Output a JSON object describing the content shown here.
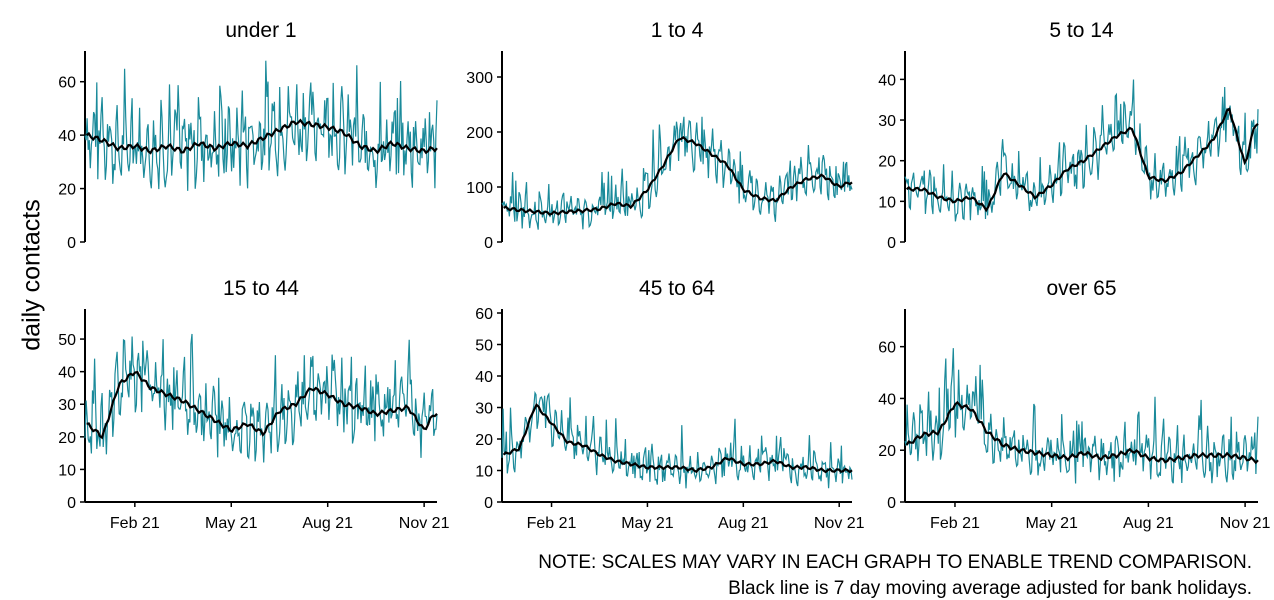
{
  "ylabel": "daily contacts",
  "notes": [
    "NOTE: SCALES MAY VARY IN EACH GRAPH TO ENABLE TREND COMPARISON.",
    "Black line is 7 day moving average adjusted for bank holidays."
  ],
  "colors": {
    "daily": "#1a8a9a",
    "average": "#000000"
  },
  "chart_data": {
    "type": "line",
    "x_tick_labels": [
      "Feb 21",
      "May 21",
      "Aug 21",
      "Nov 21"
    ],
    "x_ticks_month_index": [
      1,
      4,
      7,
      10
    ],
    "x_range_month_index": [
      -0.55,
      10.4
    ],
    "panels": [
      {
        "title": "under 1",
        "ylim": [
          0,
          70
        ],
        "yticks": [
          0,
          20,
          40,
          60
        ],
        "avg_months": [
          -0.5,
          0,
          0.5,
          1,
          1.5,
          2,
          2.5,
          3,
          3.5,
          4,
          4.5,
          5,
          5.5,
          6,
          6.5,
          7,
          7.5,
          8,
          8.5,
          9,
          9.5,
          10,
          10.3
        ],
        "avg_values": [
          40,
          38,
          35,
          36,
          34,
          36,
          34,
          37,
          35,
          37,
          36,
          39,
          42,
          45,
          44,
          43,
          41,
          36,
          34,
          37,
          35,
          34,
          35
        ],
        "daily_amplitude": 11
      },
      {
        "title": "1 to 4",
        "ylim": [
          0,
          340
        ],
        "yticks": [
          0,
          100,
          200,
          300
        ],
        "avg_months": [
          -0.5,
          0,
          0.5,
          1,
          1.5,
          2,
          2.5,
          3,
          3.5,
          4,
          4.5,
          5,
          5.5,
          6,
          6.5,
          7,
          7.5,
          8,
          8.5,
          9,
          9.5,
          10,
          10.3
        ],
        "avg_values": [
          62,
          58,
          55,
          52,
          55,
          57,
          60,
          70,
          65,
          95,
          140,
          190,
          180,
          160,
          140,
          95,
          80,
          75,
          100,
          115,
          120,
          100,
          108
        ],
        "daily_amplitude": 35
      },
      {
        "title": "5 to 14",
        "ylim": [
          0,
          46
        ],
        "yticks": [
          0,
          10,
          20,
          30,
          40
        ],
        "avg_months": [
          -0.5,
          0,
          0.5,
          1,
          1.5,
          2,
          2.5,
          3,
          3.5,
          4,
          4.5,
          5,
          5.5,
          6,
          6.5,
          7,
          7.5,
          8,
          8.5,
          9,
          9.5,
          10,
          10.3
        ],
        "avg_values": [
          13,
          13,
          11,
          10,
          11,
          8,
          17,
          14,
          11,
          14,
          18,
          20,
          23,
          26,
          28,
          16,
          15,
          17,
          21,
          25,
          33,
          19,
          29
        ],
        "daily_amplitude": 5
      },
      {
        "title": "15 to 44",
        "ylim": [
          0,
          58
        ],
        "yticks": [
          0,
          10,
          20,
          30,
          40,
          50
        ],
        "avg_months": [
          -0.5,
          0,
          0.5,
          1,
          1.5,
          2,
          2.5,
          3,
          3.5,
          4,
          4.5,
          5,
          5.5,
          6,
          6.5,
          7,
          7.5,
          8,
          8.5,
          9,
          9.5,
          10,
          10.3
        ],
        "avg_values": [
          24,
          20,
          36,
          40,
          35,
          33,
          31,
          28,
          25,
          22,
          24,
          21,
          28,
          30,
          35,
          33,
          30,
          29,
          27,
          28,
          29,
          22,
          27
        ],
        "daily_amplitude": 8
      },
      {
        "title": "45 to 64",
        "ylim": [
          0,
          60
        ],
        "yticks": [
          0,
          10,
          20,
          30,
          40,
          50,
          60
        ],
        "avg_months": [
          -0.5,
          0,
          0.5,
          1,
          1.5,
          2,
          2.5,
          3,
          3.5,
          4,
          4.5,
          5,
          5.5,
          6,
          6.5,
          7,
          7.5,
          8,
          8.5,
          9,
          9.5,
          10,
          10.3
        ],
        "avg_values": [
          15,
          17,
          31,
          25,
          19,
          18,
          15,
          13,
          12,
          11,
          11,
          11,
          10,
          11,
          14,
          12,
          12,
          13,
          11,
          11,
          10,
          10,
          10
        ],
        "daily_amplitude": 6
      },
      {
        "title": "over 65",
        "ylim": [
          0,
          73
        ],
        "yticks": [
          0,
          20,
          40,
          60
        ],
        "avg_months": [
          -0.5,
          0,
          0.5,
          1,
          1.5,
          2,
          2.5,
          3,
          3.5,
          4,
          4.5,
          5,
          5.5,
          6,
          6.5,
          7,
          7.5,
          8,
          8.5,
          9,
          9.5,
          10,
          10.3
        ],
        "avg_values": [
          22,
          26,
          27,
          38,
          36,
          27,
          22,
          20,
          19,
          18,
          17,
          19,
          17,
          18,
          20,
          17,
          16,
          17,
          18,
          18,
          18,
          17,
          16
        ],
        "daily_amplitude": 10
      }
    ]
  }
}
